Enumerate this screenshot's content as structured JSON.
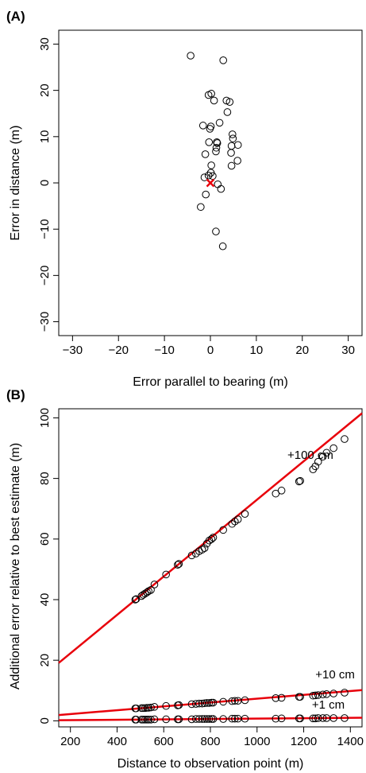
{
  "chart_data": [
    {
      "panel": "(A)",
      "type": "scatter",
      "xlabel": "Error parallel to bearing (m)",
      "ylabel": "Error in distance (m)",
      "xlim": [
        -33,
        33
      ],
      "ylim": [
        -33,
        33
      ],
      "xticks": [
        -30,
        -20,
        -10,
        0,
        10,
        20,
        30
      ],
      "yticks": [
        -30,
        -20,
        -10,
        0,
        10,
        20,
        30
      ],
      "xtick_labels": [
        "−30",
        "−20",
        "−10",
        "0",
        "10",
        "20",
        "30"
      ],
      "ytick_labels": [
        "−30",
        "−20",
        "−10",
        "0",
        "10",
        "20",
        "30"
      ],
      "points": [
        [
          -4.3,
          27.5
        ],
        [
          2.8,
          26.5
        ],
        [
          -0.4,
          19.0
        ],
        [
          0.2,
          19.3
        ],
        [
          0.8,
          17.8
        ],
        [
          3.5,
          17.8
        ],
        [
          4.2,
          17.5
        ],
        [
          3.7,
          15.3
        ],
        [
          -1.6,
          12.4
        ],
        [
          0.1,
          12.2
        ],
        [
          -0.1,
          11.7
        ],
        [
          2.0,
          13.0
        ],
        [
          4.8,
          10.5
        ],
        [
          4.9,
          9.6
        ],
        [
          6.0,
          8.2
        ],
        [
          4.6,
          8.0
        ],
        [
          -0.3,
          8.8
        ],
        [
          1.4,
          8.8
        ],
        [
          1.5,
          8.6
        ],
        [
          1.3,
          7.6
        ],
        [
          1.2,
          6.8
        ],
        [
          4.5,
          6.5
        ],
        [
          -1.1,
          6.2
        ],
        [
          5.9,
          4.8
        ],
        [
          4.6,
          3.7
        ],
        [
          0.2,
          3.8
        ],
        [
          0.1,
          2.2
        ],
        [
          -0.4,
          1.6
        ],
        [
          0.5,
          1.5
        ],
        [
          -1.3,
          1.2
        ],
        [
          1.6,
          -0.3
        ],
        [
          2.3,
          -1.3
        ],
        [
          -1.0,
          -2.5
        ],
        [
          -2.1,
          -5.2
        ],
        [
          1.2,
          -10.5
        ],
        [
          2.7,
          -13.7
        ]
      ],
      "marker_points": [
        [
          0,
          0
        ]
      ],
      "colors": {
        "points": "#000000",
        "marker": "#e8000b"
      }
    },
    {
      "panel": "(B)",
      "type": "scatter",
      "xlabel": "Distance to observation point (m)",
      "ylabel": "Additional error relative to best estimate (m)",
      "xlim": [
        150,
        1450
      ],
      "ylim": [
        -2,
        103
      ],
      "xticks": [
        200,
        400,
        600,
        800,
        1000,
        1200,
        1400
      ],
      "yticks": [
        0,
        20,
        40,
        60,
        80,
        100
      ],
      "xtick_labels": [
        "200",
        "400",
        "600",
        "800",
        "1000",
        "1200",
        "1400"
      ],
      "ytick_labels": [
        "0",
        "20",
        "40",
        "60",
        "80",
        "100"
      ],
      "x": [
        478,
        482,
        505,
        512,
        520,
        528,
        535,
        545,
        560,
        610,
        660,
        665,
        720,
        738,
        752,
        765,
        775,
        785,
        795,
        805,
        812,
        855,
        893,
        905,
        918,
        948,
        1080,
        1105,
        1180,
        1185,
        1240,
        1250,
        1262,
        1282,
        1298,
        1328,
        1375
      ],
      "series": [
        {
          "name": "+100 cm",
          "values": [
            40.0,
            40.2,
            41.2,
            41.6,
            42.0,
            42.4,
            42.8,
            43.2,
            45.0,
            48.3,
            51.5,
            51.8,
            54.6,
            55.2,
            56.0,
            56.5,
            57.0,
            58.5,
            59.5,
            60.0,
            60.5,
            63.0,
            65.0,
            65.8,
            66.5,
            68.3,
            75.0,
            76.0,
            79.0,
            79.2,
            83.0,
            84.0,
            85.5,
            87.2,
            88.5,
            90.0,
            93.0
          ],
          "fit": {
            "slope": 0.0634,
            "intercept": 9.6
          }
        },
        {
          "name": "+10 cm",
          "values": [
            4.1,
            4.1,
            4.2,
            4.2,
            4.2,
            4.3,
            4.3,
            4.4,
            4.6,
            4.9,
            5.1,
            5.2,
            5.5,
            5.6,
            5.7,
            5.7,
            5.8,
            5.9,
            5.9,
            6.0,
            6.0,
            6.3,
            6.5,
            6.6,
            6.6,
            6.8,
            7.5,
            7.6,
            7.9,
            7.9,
            8.3,
            8.4,
            8.5,
            8.7,
            8.8,
            9.0,
            9.3
          ],
          "fit": {
            "slope": 0.00634,
            "intercept": 0.96
          }
        },
        {
          "name": "+1 cm",
          "values": [
            0.4,
            0.4,
            0.4,
            0.4,
            0.4,
            0.4,
            0.4,
            0.4,
            0.5,
            0.5,
            0.5,
            0.5,
            0.5,
            0.6,
            0.6,
            0.6,
            0.6,
            0.6,
            0.6,
            0.6,
            0.6,
            0.6,
            0.7,
            0.7,
            0.7,
            0.7,
            0.7,
            0.8,
            0.8,
            0.8,
            0.8,
            0.8,
            0.9,
            0.9,
            0.9,
            0.9,
            0.9
          ],
          "fit": {
            "slope": 0.000634,
            "intercept": 0.096
          }
        }
      ],
      "annotations": [
        {
          "text": "+100 cm",
          "x": 1130,
          "y": 86.5
        },
        {
          "text": "+10 cm",
          "x": 1250,
          "y": 14.0
        },
        {
          "text": "+1 cm",
          "x": 1235,
          "y": 4.0
        }
      ],
      "colors": {
        "points": "#000000",
        "fit_line": "#e8000b"
      }
    }
  ]
}
